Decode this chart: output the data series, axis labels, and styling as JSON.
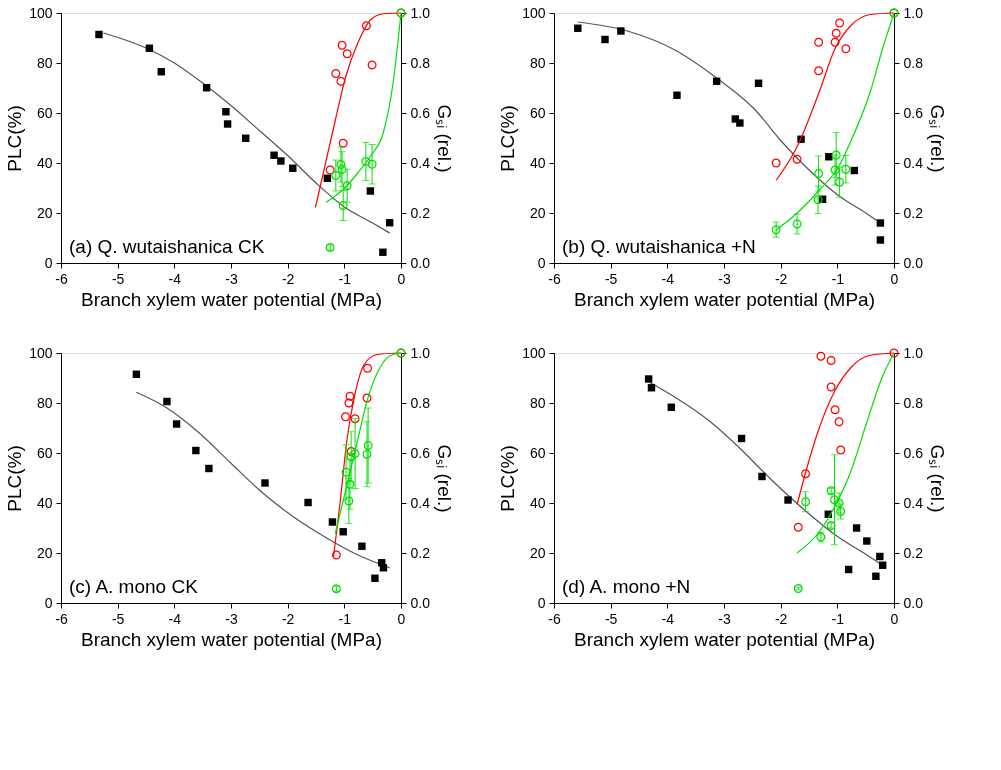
{
  "chart_data": [
    {
      "type": "scatter",
      "annotations": [
        "(a) Q. wutaishanica CK"
      ],
      "xlabel": "Branch xylem water potential (MPa)",
      "ylabel": "PLC(%)",
      "y2label": "Gₛᵢ (rel.)",
      "xlim": [
        -6,
        0
      ],
      "xticks": [
        -6,
        -5,
        -4,
        -3,
        -2,
        -1,
        0
      ],
      "ylim": [
        0,
        100
      ],
      "yticks": [
        0,
        20,
        40,
        60,
        80,
        100
      ],
      "y2lim": [
        0,
        1
      ],
      "y2ticks": [
        {
          "value": 0,
          "label": "0.0"
        },
        {
          "value": 0.2,
          "label": "0.2"
        },
        {
          "value": 0.4,
          "label": "0.4"
        },
        {
          "value": 0.6,
          "label": "0.6"
        },
        {
          "value": 0.8,
          "label": "0.8"
        },
        {
          "value": 1,
          "label": "1.0"
        }
      ],
      "grid": false,
      "series": [
        {
          "type": "line",
          "color": "#555555",
          "line_style": "solid",
          "axis": "y",
          "x": [
            -5.25,
            -4.5,
            -4,
            -3.5,
            -3,
            -2.5,
            -2,
            -1.5,
            -1,
            -0.5,
            -0.2
          ],
          "values": [
            92,
            86,
            80,
            72,
            63,
            53,
            43,
            32,
            22.4,
            16,
            12
          ]
        },
        {
          "type": "scatter",
          "color": "#000000",
          "marker": "square",
          "axis": "y",
          "x": [
            -5.33,
            -4.44,
            -4.23,
            -3.43,
            -3.09,
            -3.06,
            -2.74,
            -2.24,
            -2.12,
            -1.91,
            -1.3,
            -0.54,
            -0.2,
            -0.32
          ],
          "values": [
            91.4,
            85.9,
            76.5,
            70.1,
            60.5,
            55.6,
            49.9,
            43.1,
            40.8,
            37.9,
            33.9,
            28.8,
            16.1,
            4.3
          ]
        },
        {
          "type": "line",
          "color": "#ff0000",
          "line_style": "solid",
          "axis": "y2",
          "x": [
            -1.51,
            -1.15,
            -0.98,
            -0.76,
            -0.53,
            -0.31,
            0
          ],
          "values": [
            0.222,
            0.58,
            0.742,
            0.881,
            0.974,
            0.997,
            1.0
          ]
        },
        {
          "type": "scatter",
          "color": "#ff0000",
          "marker": "circle",
          "axis": "y2",
          "x": [
            -1.25,
            -1.15,
            -1.06,
            -1.04,
            -0.95,
            -1.02,
            -0.61,
            -0.51,
            0
          ],
          "values": [
            0.372,
            0.758,
            0.727,
            0.871,
            0.837,
            0.479,
            0.949,
            0.792,
            1.0
          ]
        },
        {
          "type": "line",
          "color": "#00e000",
          "line_style": "solid",
          "axis": "y2",
          "x": [
            -1.32,
            -0.98,
            -0.76,
            -0.53,
            -0.31,
            -0.14,
            0
          ],
          "values": [
            0.243,
            0.303,
            0.361,
            0.43,
            0.523,
            0.72,
            1.0
          ]
        },
        {
          "type": "scatter",
          "color": "#00e000",
          "marker": "circle",
          "axis": "y2",
          "x": [
            -1.25,
            -1.15,
            -1.06,
            -1.04,
            -1.02,
            -0.95,
            -0.62,
            -0.51,
            0
          ],
          "values": [
            0.062,
            0.35,
            0.394,
            0.375,
            0.23,
            0.309,
            0.406,
            0.395,
            1.0
          ],
          "errors": [
            0.01,
            0.062,
            0.07,
            0.07,
            0.06,
            0.066,
            0.076,
            0.079,
            null
          ]
        }
      ]
    },
    {
      "type": "scatter",
      "annotations": [
        "(b) Q. wutaishanica +N"
      ],
      "xlabel": "Branch xylem water potential (MPa)",
      "ylabel": "PLC(%)",
      "y2label": "Gₛᵢ (rel.)",
      "xlim": [
        -6,
        0
      ],
      "xticks": [
        -6,
        -5,
        -4,
        -3,
        -2,
        -1,
        0
      ],
      "ylim": [
        0,
        100
      ],
      "yticks": [
        0,
        20,
        40,
        60,
        80,
        100
      ],
      "y2lim": [
        0,
        1
      ],
      "y2ticks": [
        {
          "value": 0,
          "label": "0.0"
        },
        {
          "value": 0.2,
          "label": "0.2"
        },
        {
          "value": 0.4,
          "label": "0.4"
        },
        {
          "value": 0.6,
          "label": "0.6"
        },
        {
          "value": 0.8,
          "label": "0.8"
        },
        {
          "value": 1,
          "label": "1.0"
        }
      ],
      "grid": false,
      "series": [
        {
          "type": "line",
          "color": "#555555",
          "line_style": "solid",
          "axis": "y",
          "x": [
            -5.58,
            -4.69,
            -3.85,
            -3.13,
            -2.44,
            -2.0,
            -1.49,
            -0.98,
            -0.5,
            -0.24
          ],
          "values": [
            96.4,
            92.7,
            85,
            74,
            61,
            49,
            37,
            27,
            20,
            16
          ]
        },
        {
          "type": "scatter",
          "color": "#000000",
          "marker": "square",
          "axis": "y",
          "x": [
            -5.58,
            -5.1,
            -4.82,
            -3.83,
            -3.13,
            -2.8,
            -2.72,
            -2.39,
            -1.64,
            -1.15,
            -1.26,
            -0.7,
            -0.24,
            -0.24
          ],
          "values": [
            93.9,
            89.4,
            92.8,
            67.1,
            72.7,
            57.6,
            56.0,
            71.9,
            49.5,
            42.5,
            25.5,
            37.0,
            16.0,
            9.2
          ]
        },
        {
          "type": "line",
          "color": "#ff0000",
          "line_style": "solid",
          "axis": "y2",
          "x": [
            -2.08,
            -1.71,
            -1.32,
            -1.04,
            -0.76,
            -0.42,
            0
          ],
          "values": [
            0.331,
            0.465,
            0.684,
            0.858,
            0.95,
            0.994,
            1.0
          ]
        },
        {
          "type": "scatter",
          "color": "#ff0000",
          "marker": "circle",
          "axis": "y2",
          "x": [
            -2.08,
            -1.71,
            -1.33,
            -1.33,
            -1.04,
            -1.02,
            -0.96,
            -0.85,
            0
          ],
          "values": [
            0.4,
            0.415,
            0.883,
            0.769,
            0.883,
            0.919,
            0.96,
            0.857,
            1.0
          ]
        },
        {
          "type": "line",
          "color": "#00e000",
          "line_style": "solid",
          "axis": "y2",
          "x": [
            -2.08,
            -1.71,
            -1.32,
            -0.98,
            -0.76,
            -0.42,
            -0.2,
            0
          ],
          "values": [
            0.132,
            0.2,
            0.291,
            0.384,
            0.488,
            0.684,
            0.858,
            1.0
          ]
        },
        {
          "type": "scatter",
          "color": "#00e000",
          "marker": "circle",
          "axis": "y2",
          "x": [
            -2.08,
            -1.71,
            -1.33,
            -1.34,
            -1.02,
            -1.04,
            -0.96,
            -0.85,
            0
          ],
          "values": [
            0.133,
            0.156,
            0.358,
            0.253,
            0.432,
            0.372,
            0.323,
            0.375,
            1.0
          ],
          "errors": [
            0.03,
            0.04,
            0.07,
            0.055,
            0.09,
            0.06,
            0.06,
            0.055,
            null
          ]
        }
      ]
    },
    {
      "type": "scatter",
      "annotations": [
        "(c) A. mono CK"
      ],
      "xlabel": "Branch xylem water potential (MPa)",
      "ylabel": "PLC(%)",
      "y2label": "Gₛᵢ (rel.)",
      "xlim": [
        -6,
        0
      ],
      "xticks": [
        -6,
        -5,
        -4,
        -3,
        -2,
        -1,
        0
      ],
      "ylim": [
        0,
        100
      ],
      "yticks": [
        0,
        20,
        40,
        60,
        80,
        100
      ],
      "y2lim": [
        0,
        1
      ],
      "y2ticks": [
        {
          "value": 0,
          "label": "0.0"
        },
        {
          "value": 0.2,
          "label": "0.2"
        },
        {
          "value": 0.4,
          "label": "0.4"
        },
        {
          "value": 0.6,
          "label": "0.6"
        },
        {
          "value": 0.8,
          "label": "0.8"
        },
        {
          "value": 1,
          "label": "1.0"
        }
      ],
      "grid": false,
      "series": [
        {
          "type": "line",
          "color": "#555555",
          "line_style": "solid",
          "axis": "y",
          "x": [
            -4.67,
            -4.13,
            -3.57,
            -3.01,
            -2.44,
            -1.88,
            -1.32,
            -0.76,
            -0.2
          ],
          "values": [
            84.3,
            78,
            68.2,
            56.1,
            44,
            34.2,
            26.1,
            19.2,
            14.1
          ]
        },
        {
          "type": "scatter",
          "color": "#000000",
          "marker": "square",
          "axis": "y",
          "x": [
            -4.67,
            -4.13,
            -3.96,
            -3.62,
            -3.39,
            -2.4,
            -1.64,
            -1.21,
            -1.02,
            -0.69,
            -0.34,
            -0.31,
            -0.46
          ],
          "values": [
            91.5,
            80.6,
            71.6,
            61.0,
            53.8,
            48.0,
            40.2,
            32.4,
            28.5,
            22.7,
            16.1,
            14.1,
            9.9
          ]
        },
        {
          "type": "line",
          "color": "#ff0000",
          "line_style": "solid",
          "axis": "y2",
          "x": [
            -1.19,
            -1.07,
            -0.96,
            -0.81,
            -0.65,
            -0.42,
            0
          ],
          "values": [
            0.186,
            0.411,
            0.642,
            0.838,
            0.954,
            0.994,
            1.0
          ]
        },
        {
          "type": "scatter",
          "color": "#ff0000",
          "marker": "circle",
          "axis": "y2",
          "x": [
            -1.14,
            -0.98,
            -0.92,
            -0.9,
            -0.81,
            -0.88,
            -0.6,
            -0.59,
            0
          ],
          "values": [
            0.192,
            0.745,
            0.8,
            0.827,
            0.737,
            0.606,
            0.82,
            0.939,
            1.0
          ]
        },
        {
          "type": "line",
          "color": "#00e000",
          "line_style": "solid",
          "axis": "y2",
          "x": [
            -1.16,
            -0.98,
            -0.81,
            -0.59,
            -0.37,
            -0.2,
            0
          ],
          "values": [
            0.278,
            0.446,
            0.607,
            0.815,
            0.942,
            0.988,
            1.0
          ]
        },
        {
          "type": "scatter",
          "color": "#00e000",
          "marker": "circle",
          "axis": "y2",
          "x": [
            -1.14,
            -0.97,
            -0.9,
            -0.92,
            -0.88,
            -0.81,
            -0.58,
            -0.6,
            0
          ],
          "values": [
            0.057,
            0.523,
            0.475,
            0.408,
            0.585,
            0.598,
            0.63,
            0.595,
            1.0
          ],
          "errors": [
            0.01,
            0.11,
            0.1,
            0.09,
            0.1,
            0.14,
            0.15,
            0.13,
            null
          ]
        }
      ]
    },
    {
      "type": "scatter",
      "annotations": [
        "(d) A. mono +N"
      ],
      "xlabel": "Branch xylem water potential (MPa)",
      "ylabel": "PLC(%)",
      "y2label": "Gₛᵢ (rel.)",
      "xlim": [
        -6,
        0
      ],
      "xticks": [
        -6,
        -5,
        -4,
        -3,
        -2,
        -1,
        0
      ],
      "ylim": [
        0,
        100
      ],
      "yticks": [
        0,
        20,
        40,
        60,
        80,
        100
      ],
      "y2lim": [
        0,
        1
      ],
      "y2ticks": [
        {
          "value": 0,
          "label": "0.0"
        },
        {
          "value": 0.2,
          "label": "0.2"
        },
        {
          "value": 0.4,
          "label": "0.4"
        },
        {
          "value": 0.6,
          "label": "0.6"
        },
        {
          "value": 0.8,
          "label": "0.8"
        },
        {
          "value": 1,
          "label": "1.0"
        }
      ],
      "grid": false,
      "series": [
        {
          "type": "line",
          "color": "#555555",
          "line_style": "solid",
          "axis": "y",
          "x": [
            -4.33,
            -3.85,
            -3.29,
            -2.72,
            -2.16,
            -1.6,
            -1.04,
            -0.48,
            -0.2
          ],
          "values": [
            88.5,
            82.1,
            73.4,
            61.9,
            49.2,
            37.6,
            27.3,
            19.2,
            15.1
          ]
        },
        {
          "type": "scatter",
          "color": "#000000",
          "marker": "square",
          "axis": "y",
          "x": [
            -4.33,
            -4.28,
            -3.93,
            -2.69,
            -2.33,
            -1.87,
            -1.16,
            -0.66,
            -0.48,
            -0.25,
            -0.2,
            -0.8,
            -0.32
          ],
          "values": [
            89.6,
            86.1,
            78.3,
            65.8,
            50.6,
            41.2,
            35.5,
            30.0,
            24.8,
            18.6,
            15.1,
            13.4,
            10.7
          ]
        },
        {
          "type": "line",
          "color": "#ff0000",
          "line_style": "solid",
          "axis": "y2",
          "x": [
            -1.71,
            -1.54,
            -1.32,
            -1.04,
            -0.76,
            -0.42,
            0
          ],
          "values": [
            0.394,
            0.538,
            0.7,
            0.85,
            0.942,
            0.991,
            1.0
          ]
        },
        {
          "type": "scatter",
          "color": "#ff0000",
          "marker": "circle",
          "axis": "y2",
          "x": [
            -1.69,
            -1.56,
            -1.29,
            -1.11,
            -1.11,
            -1.04,
            -0.97,
            -0.94,
            0
          ],
          "values": [
            0.303,
            0.517,
            0.987,
            0.97,
            0.864,
            0.773,
            0.725,
            0.612,
            1.0
          ]
        },
        {
          "type": "line",
          "color": "#00e000",
          "line_style": "solid",
          "axis": "y2",
          "x": [
            -1.71,
            -1.32,
            -1.04,
            -0.76,
            -0.48,
            -0.2,
            0
          ],
          "values": [
            0.2,
            0.284,
            0.388,
            0.527,
            0.723,
            0.908,
            1.0
          ]
        },
        {
          "type": "scatter",
          "color": "#00e000",
          "marker": "circle",
          "axis": "y2",
          "x": [
            -1.69,
            -1.56,
            -1.29,
            -1.11,
            -1.11,
            -1.05,
            -0.97,
            -0.94
          ],
          "values": [
            0.058,
            0.405,
            0.264,
            0.449,
            0.31,
            0.413,
            0.4,
            0.366
          ],
          "errors": [
            0.005,
            0.04,
            0.02,
            0.01,
            0.01,
            0.18,
            0.04,
            0.03
          ]
        }
      ]
    }
  ]
}
